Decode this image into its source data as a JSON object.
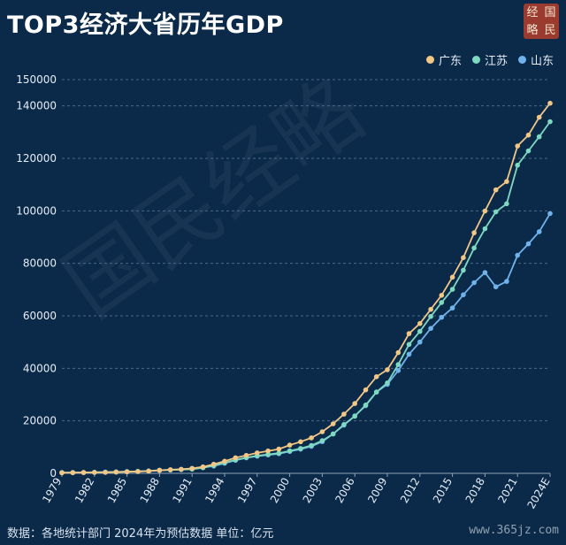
{
  "header": {
    "title": "TOP3经济大省历年GDP"
  },
  "seal": {
    "chars": [
      "经",
      "国",
      "略",
      "民"
    ]
  },
  "watermark": {
    "text": "国民经略"
  },
  "footer": {
    "source": "数据：各地统计部门 2024年为预估数据 单位：亿元",
    "site": "www.365jz.com"
  },
  "chart_data": {
    "type": "line",
    "title": "TOP3经济大省历年GDP",
    "xlabel": "",
    "ylabel": "",
    "unit": "亿元",
    "ylim": [
      0,
      150000
    ],
    "yticks": [
      0,
      20000,
      40000,
      60000,
      80000,
      100000,
      120000,
      140000,
      150000
    ],
    "x": [
      "1979",
      "1980",
      "1981",
      "1982",
      "1983",
      "1984",
      "1985",
      "1986",
      "1987",
      "1988",
      "1989",
      "1990",
      "1991",
      "1992",
      "1993",
      "1994",
      "1995",
      "1996",
      "1997",
      "1998",
      "1999",
      "2000",
      "2001",
      "2002",
      "2003",
      "2004",
      "2005",
      "2006",
      "2007",
      "2008",
      "2009",
      "2010",
      "2011",
      "2012",
      "2013",
      "2014",
      "2015",
      "2016",
      "2017",
      "2018",
      "2019",
      "2020",
      "2021",
      "2022",
      "2023",
      "2024E"
    ],
    "xtick_labels": [
      "1979",
      "1982",
      "1985",
      "1988",
      "1991",
      "1994",
      "1997",
      "2000",
      "2003",
      "2006",
      "2009",
      "2012",
      "2015",
      "2018",
      "2021",
      "2024E"
    ],
    "grid": true,
    "legend_position": "top-right",
    "series": [
      {
        "name": "广东",
        "color": "#f2c786",
        "values": [
          209,
          250,
          290,
          340,
          368,
          458,
          577,
          668,
          846,
          1155,
          1381,
          1559,
          1893,
          2448,
          3469,
          4619,
          5934,
          6835,
          7774,
          8531,
          9250,
          10741,
          12039,
          13502,
          15845,
          18865,
          22557,
          26588,
          31777,
          36797,
          39483,
          46013,
          53210,
          57068,
          62475,
          67810,
          74732,
          82163,
          91649,
          99945,
          107987,
          111152,
          124720,
          128882,
          135673,
          141000
        ]
      },
      {
        "name": "江苏",
        "color": "#7ed9c0",
        "values": [
          298,
          320,
          350,
          390,
          438,
          518,
          652,
          744,
          922,
          1208,
          1321,
          1416,
          1601,
          2136,
          2998,
          4057,
          5155,
          6004,
          6680,
          7200,
          7698,
          8554,
          9457,
          10607,
          12443,
          15004,
          18599,
          21742,
          26018,
          30982,
          34457,
          41425,
          49110,
          54058,
          59753,
          65088,
          70116,
          77388,
          85870,
          93208,
          99632,
          102719,
          117392,
          122876,
          128222,
          134000
        ]
      },
      {
        "name": "山东",
        "color": "#6fb3ea",
        "values": [
          225,
          292,
          346,
          395,
          459,
          581,
          681,
          742,
          892,
          1117,
          1293,
          1511,
          1810,
          2196,
          2779,
          3844,
          4953,
          5883,
          6537,
          7021,
          7493,
          8337,
          9195,
          10275,
          12078,
          15021,
          18366,
          21900,
          25776,
          30933,
          33896,
          39170,
          45362,
          50013,
          55230,
          59427,
          63002,
          68024,
          72634,
          76470,
          71067,
          73129,
          83096,
          87435,
          92069,
          99000
        ]
      }
    ]
  }
}
